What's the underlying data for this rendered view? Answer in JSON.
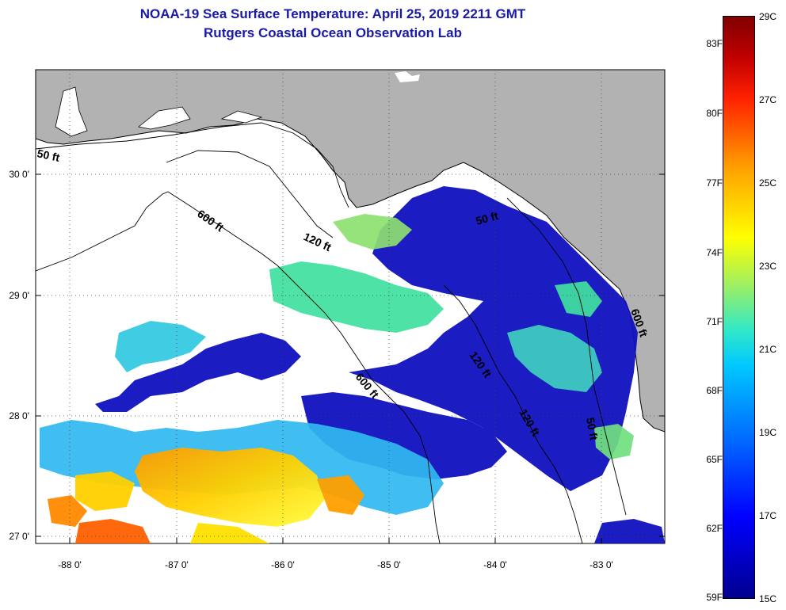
{
  "title": {
    "line1": "NOAA-19 Sea Surface Temperature:  April 25, 2019 2211 GMT",
    "line2": "Rutgers Coastal Ocean Observation Lab"
  },
  "map": {
    "land_color": "#b2b2b2",
    "cloud_color": "#ffffff",
    "lat_ticks": [
      "30 0'",
      "29 0'",
      "28 0'",
      "27 0'"
    ],
    "lon_ticks": [
      "-88 0'",
      "-87 0'",
      "-86 0'",
      "-85 0'",
      "-84 0'",
      "-83 0'"
    ],
    "contour_labels": [
      "50 ft",
      "600 ft",
      "120 ft",
      "50 ft",
      "600 ft",
      "120 ft",
      "50 ft",
      "120 ft",
      "600 ft"
    ]
  },
  "colorbar": {
    "fahrenheit_labels": [
      "83F",
      "80F",
      "77F",
      "74F",
      "71F",
      "68F",
      "65F",
      "62F",
      "59F"
    ],
    "celsius_labels": [
      "29C",
      "27C",
      "25C",
      "23C",
      "21C",
      "19C",
      "17C",
      "15C"
    ],
    "colors": {
      "min": "#00008f",
      "low": "#0000ff",
      "mid_low": "#00c8ff",
      "mid": "#a0f060",
      "mid_high": "#ffff00",
      "high": "#ff2000",
      "max": "#800000"
    }
  }
}
